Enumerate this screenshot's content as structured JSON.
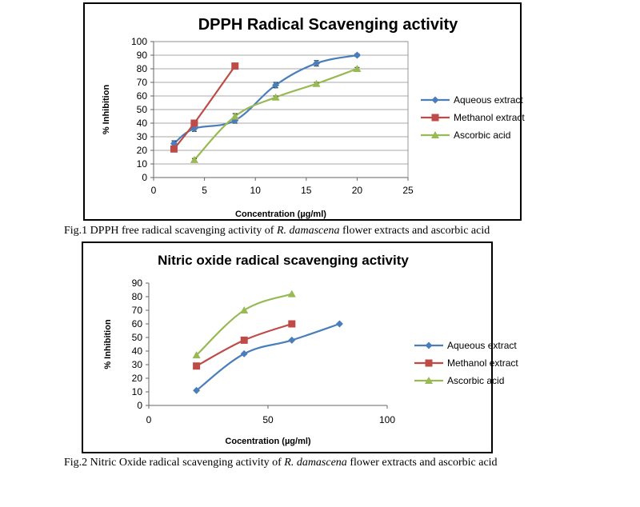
{
  "figures": [
    {
      "caption_prefix": "Fig.1 DPPH free radical scavenging activity of ",
      "caption_species": "R. damascena",
      "caption_suffix": " flower extracts and ascorbic acid"
    },
    {
      "caption_prefix": "Fig.2 Nitric Oxide radical scavenging activity of ",
      "caption_species": "R. damascena",
      "caption_suffix": " flower extracts and ascorbic    acid"
    }
  ],
  "chart_data": [
    {
      "type": "line",
      "title": "DPPH Radical Scavenging activity",
      "xlabel": "Concentration (µg/ml)",
      "ylabel": "% Inhibition",
      "xlim": [
        0,
        25
      ],
      "ylim": [
        0,
        100
      ],
      "xticks": [
        0,
        5,
        10,
        15,
        20,
        25
      ],
      "yticks": [
        0,
        10,
        20,
        30,
        40,
        50,
        60,
        70,
        80,
        90,
        100
      ],
      "grid": true,
      "legend": "right",
      "series": [
        {
          "name": "Aqueous extract",
          "color": "#4a7ebb",
          "marker": "diamond",
          "points": [
            [
              2,
              25
            ],
            [
              4,
              36
            ],
            [
              8,
              42
            ],
            [
              12,
              68
            ],
            [
              16,
              84
            ],
            [
              20,
              90
            ]
          ],
          "errors": [
            2,
            2,
            2,
            2,
            2,
            1
          ]
        },
        {
          "name": "Methanol extract",
          "color": "#be4b48",
          "marker": "square",
          "points": [
            [
              2,
              21
            ],
            [
              4,
              40
            ],
            [
              8,
              82
            ]
          ],
          "errors": [
            1,
            2,
            1
          ]
        },
        {
          "name": "Ascorbic acid",
          "color": "#98b954",
          "marker": "triangle",
          "points": [
            [
              4,
              13
            ],
            [
              8,
              45
            ],
            [
              12,
              59
            ],
            [
              16,
              69
            ],
            [
              20,
              80
            ]
          ],
          "errors": [
            1,
            2,
            1,
            1,
            1
          ]
        }
      ]
    },
    {
      "type": "line",
      "title": "Nitric oxide radical scavenging activity",
      "xlabel": "Cocentration (µg/ml)",
      "ylabel": "% Inhibition",
      "xlim": [
        0,
        100
      ],
      "ylim": [
        0,
        90
      ],
      "xticks": [
        0,
        50,
        100
      ],
      "yticks": [
        0,
        10,
        20,
        30,
        40,
        50,
        60,
        70,
        80,
        90
      ],
      "grid": false,
      "legend": "right",
      "series": [
        {
          "name": "Aqueous extract",
          "color": "#4a7ebb",
          "marker": "diamond",
          "points": [
            [
              20,
              11
            ],
            [
              40,
              38
            ],
            [
              60,
              48
            ],
            [
              80,
              60
            ]
          ]
        },
        {
          "name": "Methanol extract",
          "color": "#be4b48",
          "marker": "square",
          "points": [
            [
              20,
              29
            ],
            [
              40,
              48
            ],
            [
              60,
              60
            ]
          ]
        },
        {
          "name": "Ascorbic acid",
          "color": "#98b954",
          "marker": "triangle",
          "points": [
            [
              20,
              37
            ],
            [
              40,
              70
            ],
            [
              60,
              82
            ]
          ]
        }
      ]
    }
  ]
}
